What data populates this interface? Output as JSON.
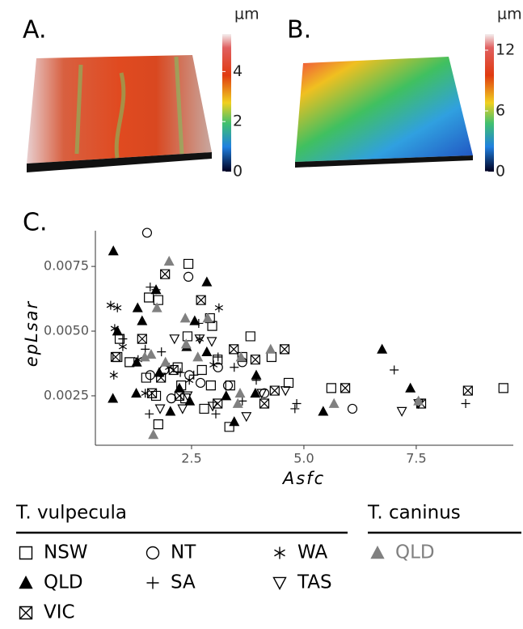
{
  "panels": [
    {
      "label": "A.",
      "unit": "µm",
      "range": [
        0,
        5.5
      ],
      "ticks": [
        0,
        2,
        4
      ]
    },
    {
      "label": "B.",
      "unit": "µm",
      "range": [
        0,
        13.6
      ],
      "ticks": [
        0,
        6,
        12
      ]
    }
  ],
  "chart_data": {
    "type": "scatter",
    "label": "C.",
    "x_label": "Asfc",
    "y_label": "epLsar",
    "xlim": [
      0.36,
      9.66
    ],
    "xticks": [
      2.5,
      {
        "value": 5,
        "label": "5.0"
      },
      7.5
    ],
    "ylim": [
      0.00059,
      0.00888
    ],
    "yticks": [
      0.0025,
      {
        "value": 0.005,
        "label": "0.0050"
      },
      0.0075
    ],
    "series": [
      {
        "name": "NSW",
        "group": "T. vulpecula",
        "marker": "square-open",
        "color": "#000000",
        "x": [
          2.43,
          1.55,
          0.9,
          1.76,
          2.91,
          3.81,
          2.96,
          0.85,
          1.12,
          2.41,
          2.19,
          2.73,
          3.08,
          3.63,
          4.28,
          4.66,
          5.61,
          9.44,
          1.76,
          3.34,
          2.78,
          2.36,
          3.36,
          2.93,
          1.49,
          1.71,
          2.27
        ],
        "values": [
          0.0076,
          0.0063,
          0.0047,
          0.0062,
          0.0055,
          0.0048,
          0.0052,
          0.004,
          0.0038,
          0.0048,
          0.0036,
          0.0035,
          0.0039,
          0.004,
          0.004,
          0.003,
          0.0028,
          0.0028,
          0.0014,
          0.0013,
          0.002,
          0.0024,
          0.0029,
          0.0029,
          0.0032,
          0.0025,
          0.0029
        ]
      },
      {
        "name": "NT",
        "group": "T. vulpecula",
        "marker": "circle-open",
        "color": "#000000",
        "x": [
          1.51,
          2.43,
          3.63,
          2.05,
          2.7,
          6.08,
          1.58,
          2.45,
          3.31,
          3.09,
          1.89,
          4.12
        ],
        "values": [
          0.0088,
          0.0071,
          0.0038,
          0.0024,
          0.003,
          0.002,
          0.0033,
          0.0033,
          0.0029,
          0.0036,
          0.0035,
          0.0026
        ]
      },
      {
        "name": "WA",
        "group": "T. vulpecula",
        "marker": "asterisk",
        "color": "#000000",
        "x": [
          0.7,
          0.79,
          0.97,
          0.77,
          1.31,
          3.11,
          2.68,
          2.45,
          2.0,
          2.99,
          1.47,
          0.85
        ],
        "values": [
          0.006,
          0.0051,
          0.0044,
          0.0033,
          0.0039,
          0.0059,
          0.0047,
          0.0031,
          0.0036,
          0.0037,
          0.0026,
          0.0059
        ]
      },
      {
        "name": "QLD",
        "group": "T. vulpecula",
        "marker": "triangle",
        "color": "#000000",
        "x": [
          0.76,
          0.75,
          0.85,
          1.4,
          1.3,
          1.71,
          2.84,
          2.57,
          2.39,
          2.23,
          2.46,
          2.03,
          3.45,
          3.92,
          3.94,
          5.43,
          6.74,
          7.37,
          1.27,
          2.84,
          3.27,
          1.78,
          1.28
        ],
        "values": [
          0.0081,
          0.0024,
          0.005,
          0.0054,
          0.0059,
          0.0066,
          0.0069,
          0.0054,
          0.0044,
          0.0028,
          0.0023,
          0.0019,
          0.0015,
          0.0026,
          0.0033,
          0.0019,
          0.0043,
          0.0028,
          0.0026,
          0.0042,
          0.0025,
          0.0034,
          0.0038
        ]
      },
      {
        "name": "SA",
        "group": "T. vulpecula",
        "marker": "plus",
        "color": "#000000",
        "x": [
          1.58,
          1.71,
          0.97,
          1.83,
          2.66,
          3.09,
          3.45,
          3.94,
          4.8,
          4.84,
          7.01,
          8.6,
          3.04,
          3.63,
          1.56,
          2.25,
          2.55,
          1.47
        ],
        "values": [
          0.0067,
          0.0066,
          0.0047,
          0.0042,
          0.0053,
          0.004,
          0.0036,
          0.0031,
          0.002,
          0.0022,
          0.0035,
          0.0022,
          0.0018,
          0.0023,
          0.0018,
          0.0034,
          0.0033,
          0.0043
        ]
      },
      {
        "name": "TAS",
        "group": "T. vulpecula",
        "marker": "triangle-down-open",
        "color": "#000000",
        "x": [
          2.12,
          2.68,
          2.95,
          3.72,
          4.06,
          4.59,
          7.18,
          7.55,
          2.3,
          2.97,
          1.8,
          2.41
        ],
        "values": [
          0.0047,
          0.0047,
          0.0046,
          0.0017,
          0.0026,
          0.0027,
          0.0019,
          0.0022,
          0.002,
          0.0021,
          0.002,
          0.0025
        ]
      },
      {
        "name": "VIC",
        "group": "T. vulpecula",
        "marker": "square-x",
        "color": "#000000",
        "x": [
          1.91,
          2.71,
          0.81,
          1.4,
          3.44,
          3.92,
          4.57,
          5.92,
          7.61,
          8.65,
          1.82,
          2.1,
          2.23,
          3.08,
          4.12,
          4.35,
          1.62
        ],
        "values": [
          0.0072,
          0.0062,
          0.004,
          0.0047,
          0.0043,
          0.0039,
          0.0043,
          0.0028,
          0.0022,
          0.0027,
          0.0032,
          0.0035,
          0.0025,
          0.0022,
          0.0022,
          0.0027,
          0.0026
        ]
      },
      {
        "name": "QLD",
        "group": "T. caninus",
        "marker": "triangle",
        "color": "#808080",
        "x": [
          2.0,
          1.73,
          2.36,
          2.86,
          1.6,
          2.38,
          1.92,
          2.64,
          3.58,
          4.26,
          5.67,
          7.55,
          1.65,
          3.6,
          1.46,
          3.53
        ],
        "values": [
          0.0077,
          0.0059,
          0.0055,
          0.0055,
          0.0041,
          0.0045,
          0.0038,
          0.004,
          0.0026,
          0.0043,
          0.0022,
          0.0023,
          0.001,
          0.004,
          0.004,
          0.0022
        ]
      }
    ]
  }
}
